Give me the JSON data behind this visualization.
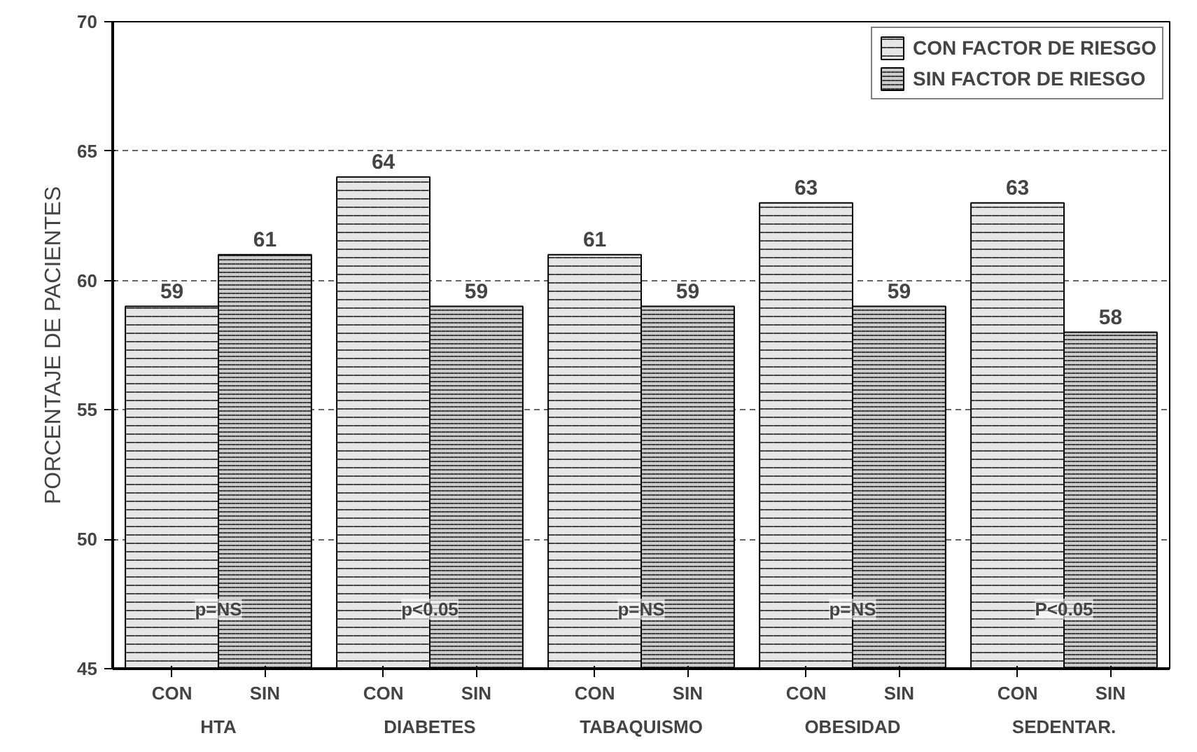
{
  "chart_data": {
    "type": "bar",
    "ylabel": "PORCENTAJE DE PACIENTES",
    "categories": [
      "HTA",
      "DIABETES",
      "TABAQUISMO",
      "OBESIDAD",
      "SEDENTAR."
    ],
    "series": [
      {
        "name": "CON FACTOR DE RIESGO",
        "color": "#e6e6e6",
        "values": [
          59,
          64,
          61,
          63,
          63
        ]
      },
      {
        "name": "SIN FACTOR DE RIESGO",
        "color": "#cccccc",
        "values": [
          61,
          59,
          59,
          59,
          58
        ]
      }
    ],
    "ylim": [
      45,
      70
    ],
    "yticks": [
      45,
      50,
      55,
      60,
      65,
      70
    ],
    "grid": "y",
    "legend": "top right",
    "data_labels": true,
    "annotations": [
      {
        "text": "CON",
        "x": "HTA",
        "y": 45
      },
      {
        "text": "SIN",
        "x": "HTA",
        "y": 45
      },
      {
        "text": "CON",
        "x": "DIABETES",
        "y": 45
      },
      {
        "text": "SIN",
        "x": "DIABETES",
        "y": 45
      },
      {
        "text": "CON",
        "x": "TABAQUISMO",
        "y": 45
      },
      {
        "text": "SIN",
        "x": "TABAQUISMO",
        "y": 45
      },
      {
        "text": "CON",
        "x": "OBESIDAD",
        "y": 45
      },
      {
        "text": "SIN",
        "x": "OBESIDAD",
        "y": 45
      },
      {
        "text": "CON",
        "x": "SEDENTAR.",
        "y": 45
      },
      {
        "text": "SIN",
        "x": "SEDENTAR.",
        "y": 45
      },
      {
        "text": "p=NS",
        "x": "HTA",
        "y": 47.3
      },
      {
        "text": "p<0.05",
        "x": "DIABETES",
        "y": 47.3
      },
      {
        "text": "p=NS",
        "x": "TABAQUISMO",
        "y": 47.3
      },
      {
        "text": "p=NS",
        "x": "OBESIDAD",
        "y": 47.3
      },
      {
        "text": "P<0.05",
        "x": "SEDENTAR.",
        "y": 47.3
      }
    ]
  }
}
